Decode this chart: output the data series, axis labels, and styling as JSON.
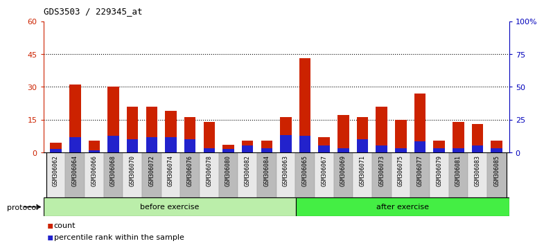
{
  "title": "GDS3503 / 229345_at",
  "categories": [
    "GSM306062",
    "GSM306064",
    "GSM306066",
    "GSM306068",
    "GSM306070",
    "GSM306072",
    "GSM306074",
    "GSM306076",
    "GSM306078",
    "GSM306080",
    "GSM306082",
    "GSM306084",
    "GSM306063",
    "GSM306065",
    "GSM306067",
    "GSM306069",
    "GSM306071",
    "GSM306073",
    "GSM306075",
    "GSM306077",
    "GSM306079",
    "GSM306081",
    "GSM306083",
    "GSM306085"
  ],
  "count_values": [
    4.5,
    31.0,
    5.5,
    30.0,
    21.0,
    21.0,
    19.0,
    16.0,
    14.0,
    3.5,
    5.5,
    5.5,
    16.0,
    43.0,
    7.0,
    17.0,
    16.0,
    21.0,
    15.0,
    27.0,
    5.5,
    14.0,
    13.0,
    5.5
  ],
  "percentile_values": [
    1.5,
    7.0,
    1.0,
    7.5,
    6.0,
    7.0,
    7.0,
    6.0,
    2.0,
    1.5,
    3.0,
    2.0,
    8.0,
    7.5,
    3.0,
    2.0,
    6.0,
    3.0,
    2.0,
    5.0,
    2.0,
    2.0,
    3.0,
    2.0
  ],
  "n_before": 13,
  "n_after": 11,
  "count_color": "#cc2200",
  "percentile_color": "#2222cc",
  "ylim_left": [
    0,
    60
  ],
  "ylim_right": [
    0,
    100
  ],
  "yticks_left": [
    0,
    15,
    30,
    45,
    60
  ],
  "ytick_labels_left": [
    "0",
    "15",
    "30",
    "45",
    "60"
  ],
  "yticks_right": [
    0,
    25,
    50,
    75,
    100
  ],
  "ytick_labels_right": [
    "0",
    "25",
    "50",
    "75",
    "100%"
  ],
  "dotted_lines": [
    15,
    30,
    45
  ],
  "before_color": "#bbeeaa",
  "after_color": "#44ee44",
  "tick_bg_color": "#bbbbbb",
  "bar_width": 0.6,
  "title_fontsize": 9,
  "axis_label_fontsize": 8,
  "tick_label_fontsize": 6,
  "legend_fontsize": 8
}
